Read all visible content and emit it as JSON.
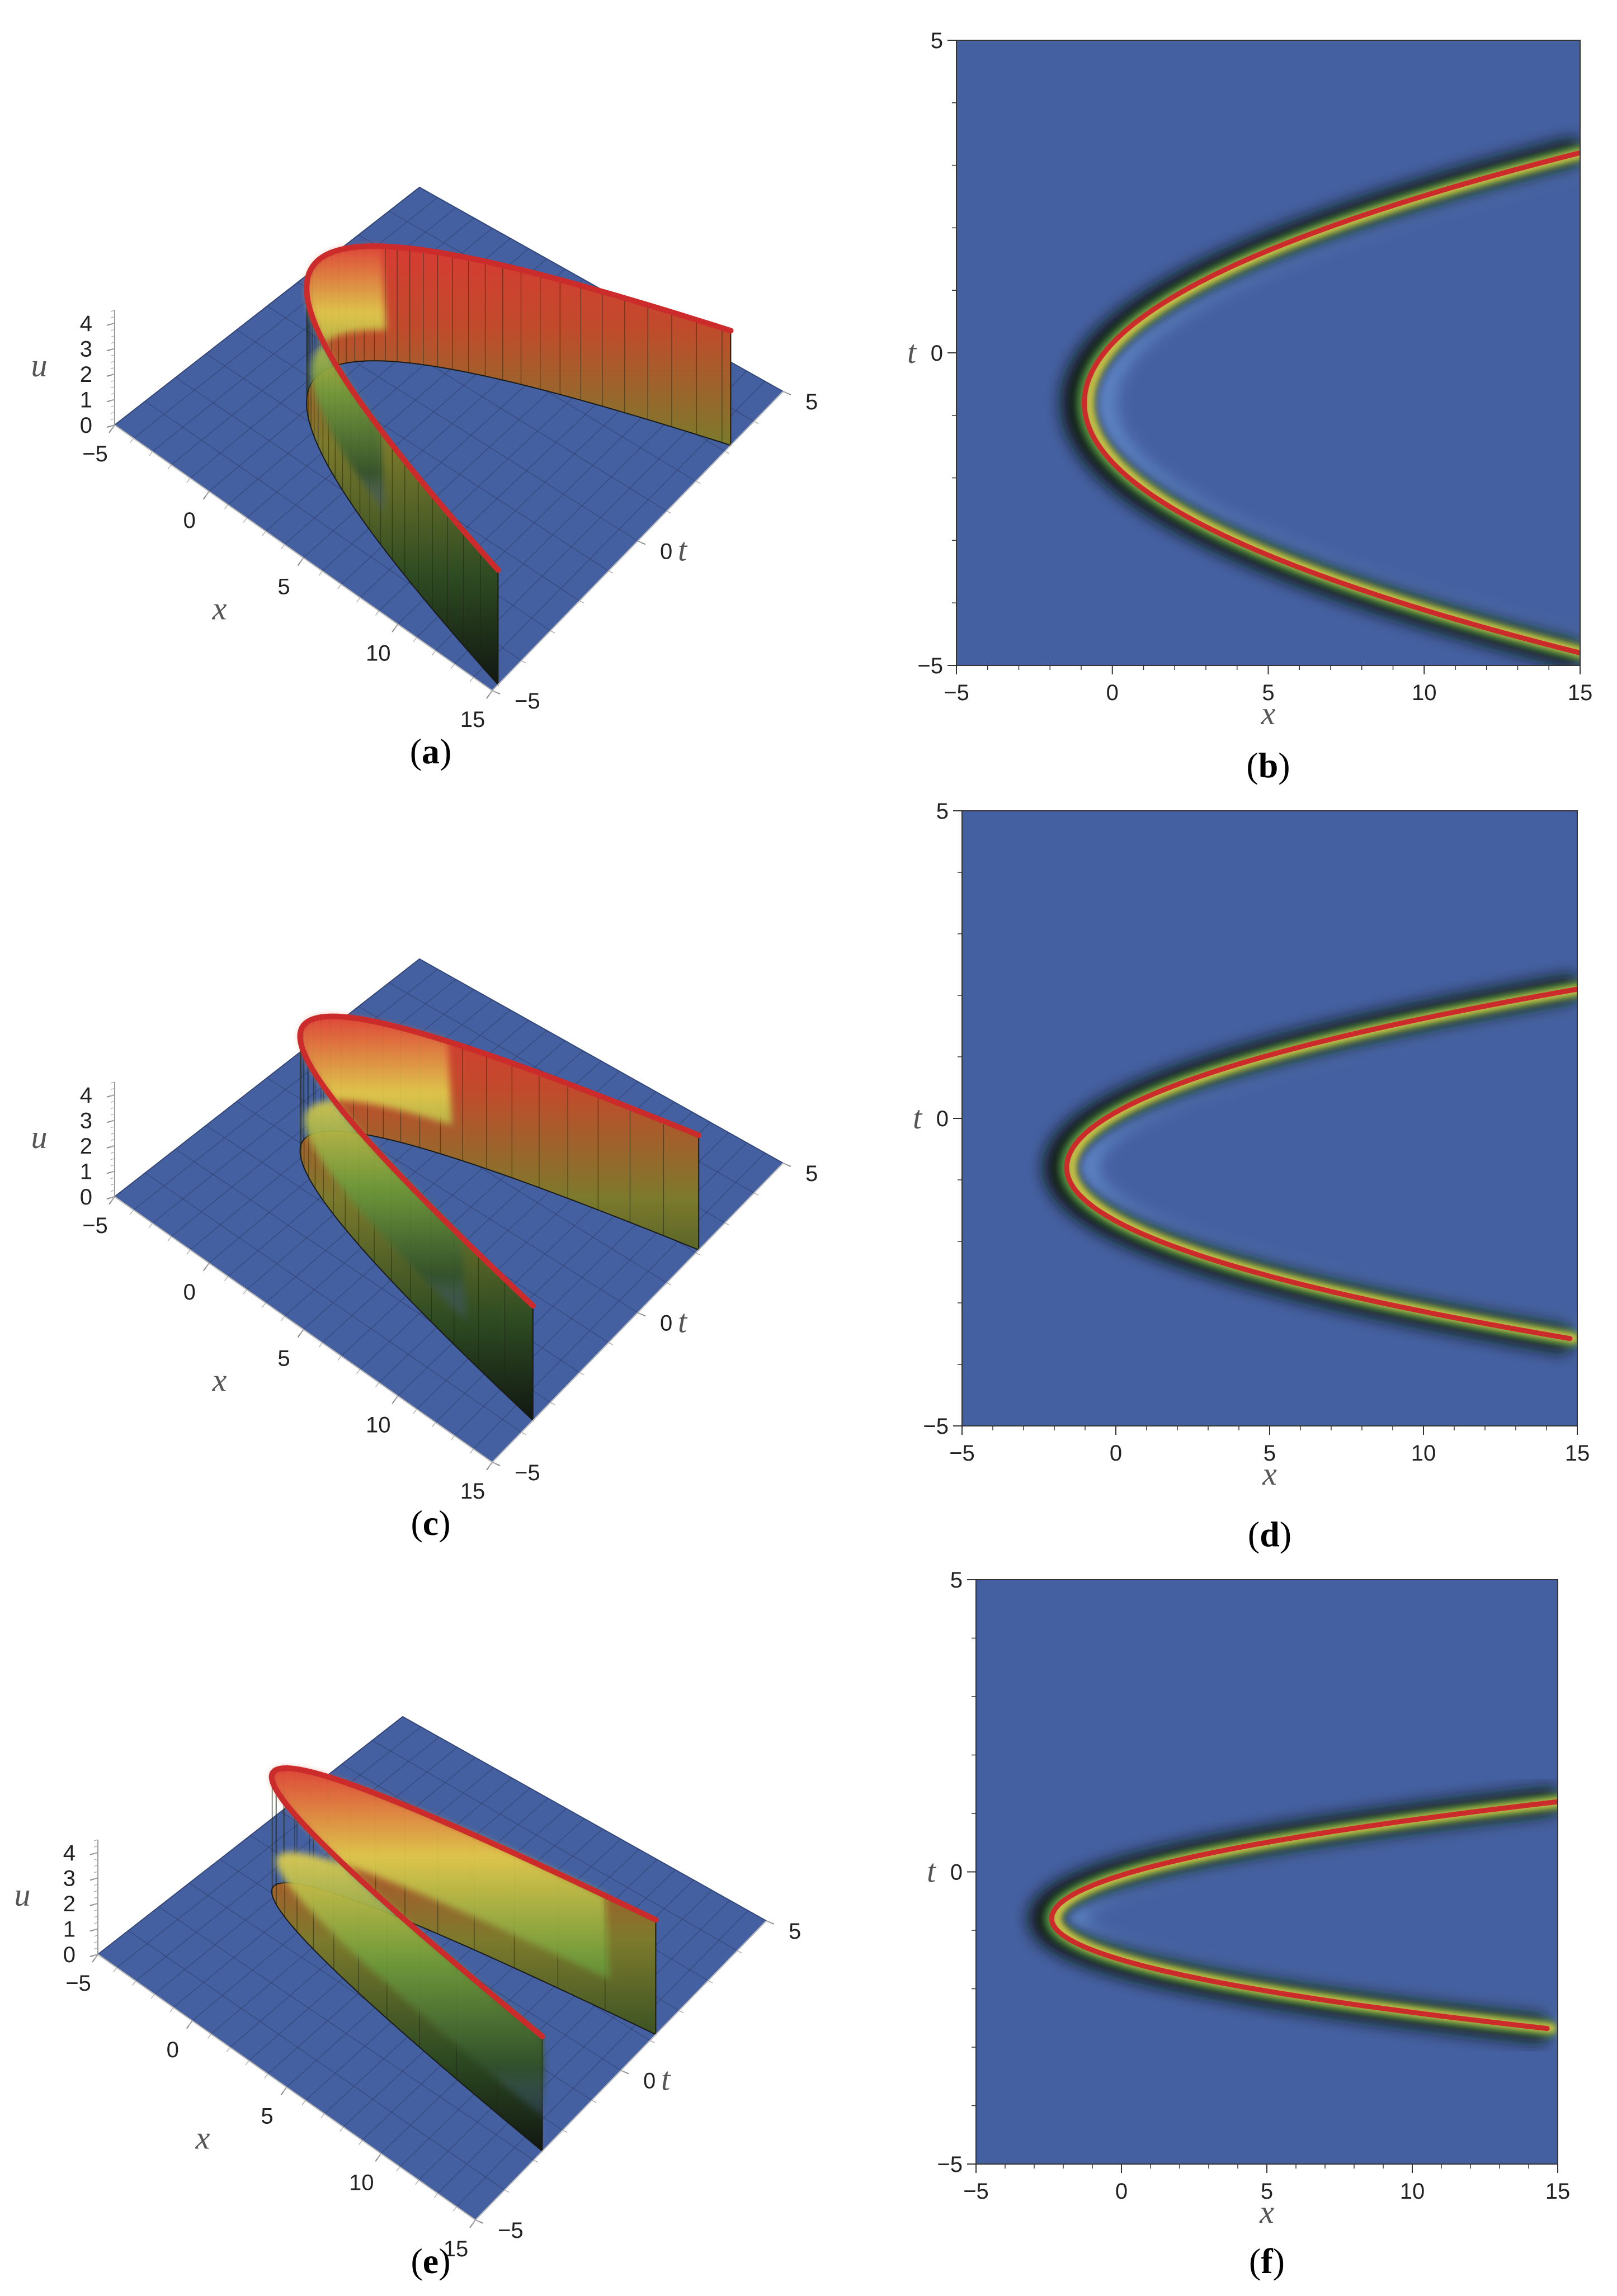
{
  "figure": {
    "panels": [
      {
        "id": "a",
        "caption": "(a)",
        "caption_letter": "a",
        "kind": "surface3d"
      },
      {
        "id": "b",
        "caption": "(b)",
        "caption_letter": "b",
        "kind": "density"
      },
      {
        "id": "c",
        "caption": "(c)",
        "caption_letter": "c",
        "kind": "surface3d"
      },
      {
        "id": "d",
        "caption": "(d)",
        "caption_letter": "d",
        "kind": "density"
      },
      {
        "id": "e",
        "caption": "(e)",
        "caption_letter": "e",
        "kind": "surface3d"
      },
      {
        "id": "f",
        "caption": "(f)",
        "caption_letter": "f",
        "kind": "density"
      }
    ]
  },
  "colors": {
    "background_plane": "#4560a0",
    "peak_red": "#cc2b2b",
    "mid_yellow": "#d8c84a",
    "low_green": "#3f7a3a",
    "shadow_black": "#101410"
  },
  "chart_data": [
    {
      "panel": "a",
      "type": "surface3d",
      "xlabel": "x",
      "ylabel": "t",
      "zlabel": "u",
      "xlim": [
        -5,
        15
      ],
      "ylim": [
        -5,
        5
      ],
      "zlim": [
        0,
        4.5
      ],
      "xticks": [
        "−5",
        "0",
        "5",
        "10",
        "15"
      ],
      "yticks": [
        "−5",
        "0",
        "5"
      ],
      "zticks": [
        "0",
        "1",
        "2",
        "3",
        "4"
      ],
      "ridge": {
        "shape": "parabolic",
        "vertex": {
          "x": -0.9,
          "t": -0.8
        },
        "peak_u": 4.5,
        "upper_end": {
          "x": 15,
          "t": 3.2
        },
        "lower_end": {
          "x": 15,
          "t": -4.8
        }
      }
    },
    {
      "panel": "b",
      "type": "heatmap",
      "xlabel": "x",
      "ylabel": "t",
      "xlim": [
        -5,
        15
      ],
      "ylim": [
        -5,
        5
      ],
      "xticks": [
        "−5",
        "0",
        "5",
        "10",
        "15"
      ],
      "yticks": [
        "−5",
        "0",
        "5"
      ],
      "ridge": {
        "shape": "parabolic",
        "vertex": {
          "x": -0.9,
          "t": -0.8
        },
        "upper_end": {
          "x": 15,
          "t": 3.2
        },
        "lower_end": {
          "x": 15,
          "t": -4.8
        }
      }
    },
    {
      "panel": "c",
      "type": "surface3d",
      "xlabel": "x",
      "ylabel": "t",
      "zlabel": "u",
      "xlim": [
        -5,
        15
      ],
      "ylim": [
        -5,
        5
      ],
      "zlim": [
        0,
        4.5
      ],
      "xticks": [
        "−5",
        "0",
        "5",
        "10",
        "15"
      ],
      "yticks": [
        "−5",
        "0",
        "5"
      ],
      "zticks": [
        "0",
        "1",
        "2",
        "3",
        "4"
      ],
      "ridge": {
        "shape": "parabolic",
        "vertex": {
          "x": -1.6,
          "t": -0.8
        },
        "peak_u": 4.5,
        "upper_end": {
          "x": 15,
          "t": 2.1
        },
        "lower_end": {
          "x": 15,
          "t": -3.6
        }
      }
    },
    {
      "panel": "d",
      "type": "heatmap",
      "xlabel": "x",
      "ylabel": "t",
      "xlim": [
        -5,
        15
      ],
      "ylim": [
        -5,
        5
      ],
      "xticks": [
        "−5",
        "0",
        "5",
        "10",
        "15"
      ],
      "yticks": [
        "−5",
        "0",
        "5"
      ],
      "ridge": {
        "shape": "parabolic",
        "vertex": {
          "x": -1.6,
          "t": -0.8
        },
        "upper_end": {
          "x": 15,
          "t": 2.1
        },
        "lower_end": {
          "x": 15,
          "t": -3.6
        }
      }
    },
    {
      "panel": "e",
      "type": "surface3d",
      "xlabel": "x",
      "ylabel": "t",
      "zlabel": "u",
      "xlim": [
        -5,
        15
      ],
      "ylim": [
        -5,
        5
      ],
      "zlim": [
        0,
        4.5
      ],
      "xticks": [
        "−5",
        "0",
        "5",
        "10",
        "15"
      ],
      "yticks": [
        "−5",
        "0",
        "5"
      ],
      "zticks": [
        "0",
        "1",
        "2",
        "3",
        "4"
      ],
      "ridge": {
        "shape": "parabolic",
        "vertex": {
          "x": -2.4,
          "t": -0.8
        },
        "peak_u": 4.5,
        "upper_end": {
          "x": 15,
          "t": 1.2
        },
        "lower_end": {
          "x": 15,
          "t": -2.7
        }
      }
    },
    {
      "panel": "f",
      "type": "heatmap",
      "xlabel": "x",
      "ylabel": "t",
      "xlim": [
        -5,
        15
      ],
      "ylim": [
        -5,
        5
      ],
      "xticks": [
        "−5",
        "0",
        "5",
        "10",
        "15"
      ],
      "yticks": [
        "−5",
        "0",
        "5"
      ],
      "ridge": {
        "shape": "parabolic",
        "vertex": {
          "x": -2.4,
          "t": -0.8
        },
        "upper_end": {
          "x": 15,
          "t": 1.2
        },
        "lower_end": {
          "x": 15,
          "t": -2.7
        }
      }
    }
  ]
}
